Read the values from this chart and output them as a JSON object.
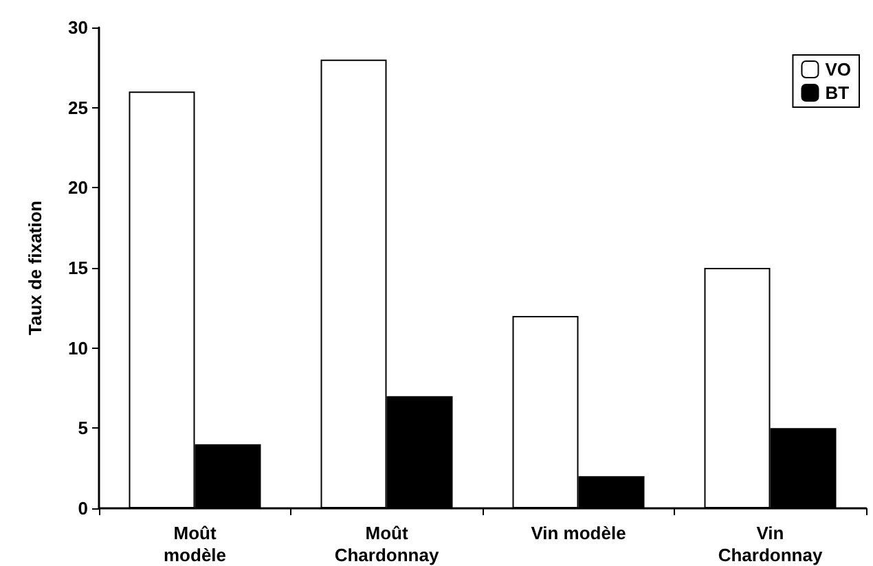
{
  "chart_data": {
    "type": "bar",
    "ylabel": "Taux de fixation",
    "categories": [
      "Moût\nmodèle",
      "Moût\nChardonnay",
      "Vin modèle",
      "Vin\nChardonnay"
    ],
    "series": [
      {
        "name": "VO",
        "color": "#ffffff",
        "values": [
          26,
          28,
          12,
          15
        ]
      },
      {
        "name": "BT",
        "color": "#000000",
        "values": [
          4,
          7,
          2,
          5
        ]
      }
    ],
    "ylim": [
      0,
      30
    ],
    "yticks": [
      0,
      5,
      10,
      15,
      20,
      25,
      30
    ],
    "grid": false,
    "legend": "top right"
  }
}
